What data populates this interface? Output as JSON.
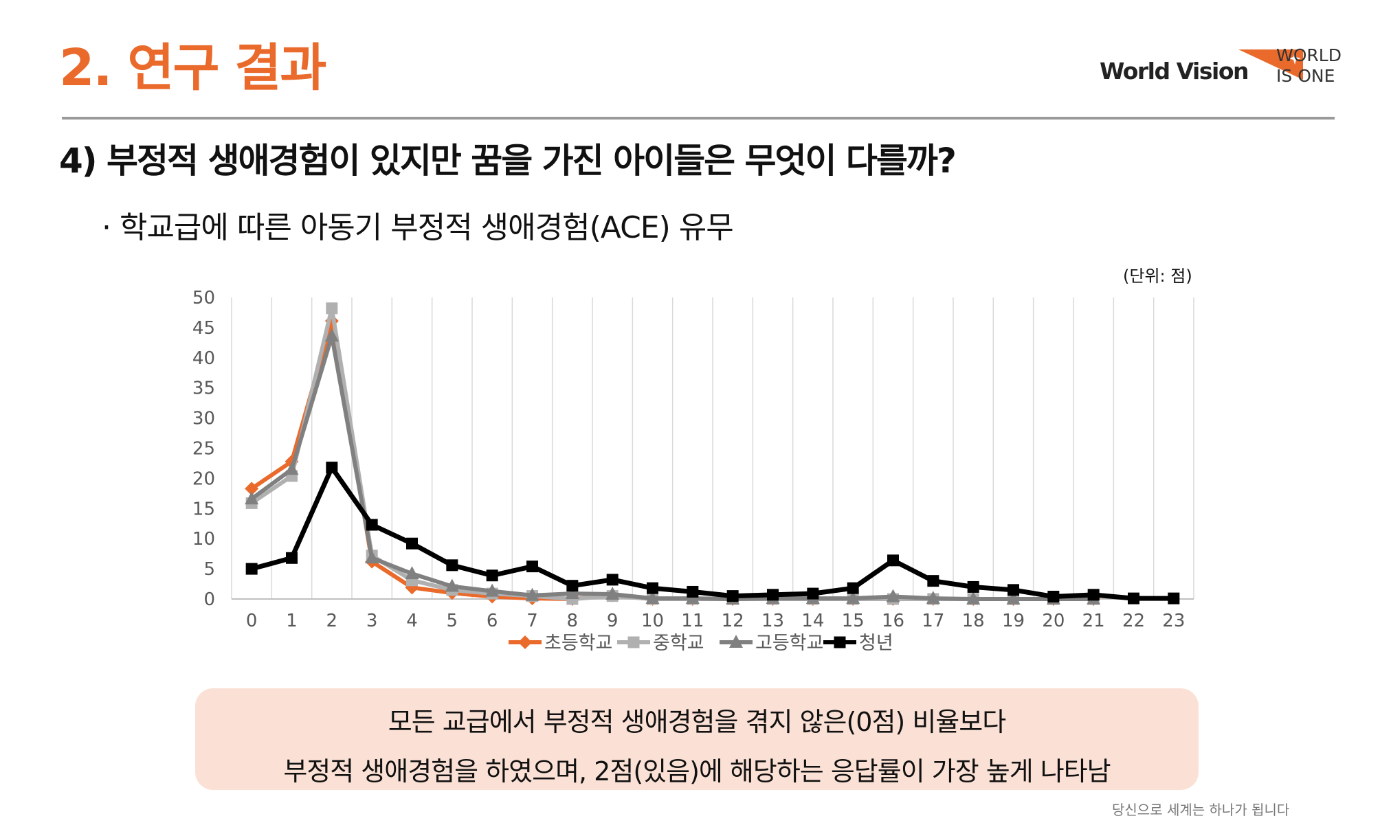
{
  "header": {
    "section_title": "2. 연구 결과",
    "logo_text": "World Vision",
    "slogan_line1": "WORLD",
    "slogan_line2": "IS ONE"
  },
  "question": "4) 부정적 생애경험이 있지만 꿈을 가진 아이들은 무엇이 다를까?",
  "bullet": "· 학교급에 따른 아동기 부정적 생애경험(ACE) 유무",
  "unit_label": "(단위: 점)",
  "colors": {
    "accent": "#ea6a2c",
    "elementary": "#ea6a2c",
    "middle": "#b0b0b0",
    "high": "#808080",
    "youth": "#000000",
    "callout_bg": "#fbe1d5"
  },
  "chart_data": {
    "type": "line",
    "title": "",
    "xlabel": "",
    "ylabel": "",
    "x": [
      "0",
      "1",
      "2",
      "3",
      "4",
      "5",
      "6",
      "7",
      "8",
      "9",
      "10",
      "11",
      "12",
      "13",
      "14",
      "15",
      "16",
      "17",
      "18",
      "19",
      "20",
      "21",
      "22",
      "23"
    ],
    "ylim": [
      0,
      50
    ],
    "yticks": [
      "0",
      "5",
      "10",
      "15",
      "20",
      "25",
      "30",
      "35",
      "40",
      "45",
      "50"
    ],
    "grid": "vertical",
    "legend_position": "bottom",
    "series": [
      {
        "name": "초등학교",
        "color": "#ea6a2c",
        "marker": "diamond",
        "values": [
          18.3,
          22.8,
          46.1,
          6.2,
          1.9,
          1.0,
          0.4,
          0.1,
          0.0,
          0.6,
          0.0,
          0.0,
          0.0,
          0.0,
          0.0,
          0.0,
          0.0,
          0.0,
          0.0,
          0.0,
          0.0,
          0.0,
          null,
          null
        ]
      },
      {
        "name": "중학교",
        "color": "#b0b0b0",
        "marker": "square",
        "values": [
          15.9,
          20.4,
          48.2,
          7.2,
          3.1,
          1.5,
          0.9,
          0.5,
          0.0,
          0.5,
          0.0,
          0.0,
          0.0,
          0.0,
          0.0,
          0.0,
          0.0,
          0.0,
          0.0,
          0.0,
          0.0,
          0.0,
          null,
          null
        ]
      },
      {
        "name": "고등학교",
        "color": "#808080",
        "marker": "triangle",
        "values": [
          16.6,
          21.5,
          43.6,
          6.8,
          4.2,
          2.1,
          1.3,
          0.6,
          0.9,
          0.8,
          0.1,
          0.1,
          0.0,
          0.1,
          0.1,
          0.1,
          0.4,
          0.1,
          0.0,
          0.0,
          0.0,
          0.0,
          null,
          null
        ]
      },
      {
        "name": "청년",
        "color": "#000000",
        "marker": "square",
        "values": [
          5.0,
          6.8,
          21.8,
          12.3,
          9.2,
          5.6,
          3.9,
          5.4,
          2.2,
          3.2,
          1.8,
          1.2,
          0.5,
          0.7,
          0.9,
          1.8,
          6.4,
          3.0,
          2.0,
          1.5,
          0.4,
          0.7,
          0.1,
          0.1
        ]
      }
    ]
  },
  "callout": {
    "line1": "모든 교급에서 부정적 생애경험을 겪지 않은(0점) 비율보다",
    "line2": "부정적 생애경험을 하였으며, 2점(있음)에 해당하는 응답률이 가장 높게 나타남"
  },
  "footer": "당신으로 세계는 하나가 됩니다"
}
